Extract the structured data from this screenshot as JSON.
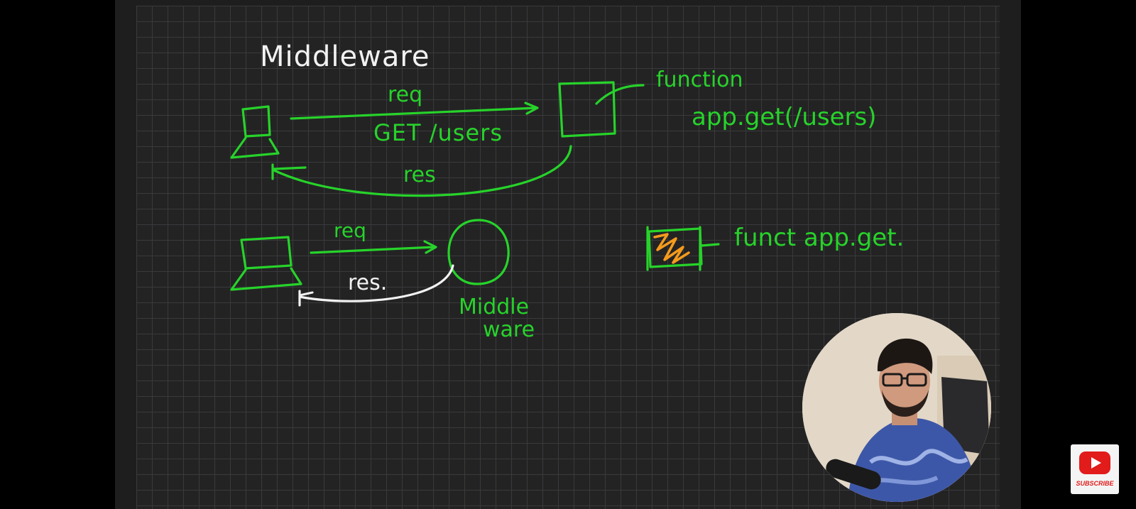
{
  "board": {
    "title": "Middleware",
    "top_diagram": {
      "req_label": "req",
      "route_label": "GET /users",
      "res_label": "res",
      "function_label": "function",
      "handler_label": "app.get(/users)"
    },
    "bottom_diagram": {
      "req_label": "req",
      "res_label": "res.",
      "middleware_label_line1": "Middle",
      "middleware_label_line2": "ware",
      "func_label": "funct app.get."
    }
  },
  "overlay": {
    "subscribe_label": "SUBSCRIBE",
    "icons": [
      "youtube-play-icon"
    ],
    "colors": {
      "ink": "#27d32a",
      "white_ink": "#f2f2f2",
      "highlight": "#f59a1c",
      "youtube_red": "#e21b1b"
    }
  }
}
